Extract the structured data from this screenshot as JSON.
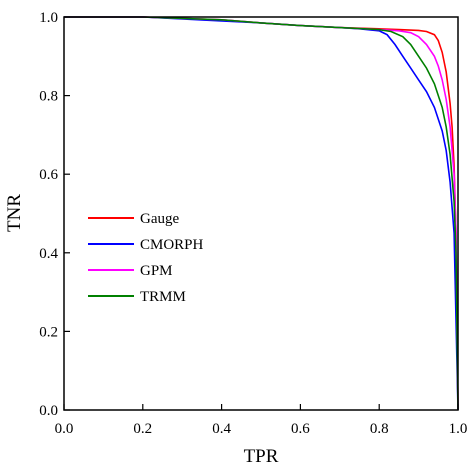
{
  "chart_data": {
    "type": "line",
    "title": "",
    "xlabel": "TPR",
    "ylabel": "TNR",
    "xlim": [
      0.0,
      1.0
    ],
    "ylim": [
      0.0,
      1.0
    ],
    "xticks": [
      "0.0",
      "0.2",
      "0.4",
      "0.6",
      "0.8",
      "1.0"
    ],
    "yticks": [
      "0.0",
      "0.2",
      "0.4",
      "0.6",
      "0.8",
      "1.0"
    ],
    "grid": false,
    "legend_position": "center-left",
    "series": [
      {
        "name": "Gauge",
        "color": "#ff0000",
        "x": [
          0.0,
          0.2,
          0.4,
          0.5,
          0.6,
          0.7,
          0.8,
          0.85,
          0.9,
          0.92,
          0.94,
          0.95,
          0.96,
          0.97,
          0.98,
          0.985,
          0.99,
          0.995,
          1.0
        ],
        "y": [
          1.0,
          1.0,
          0.993,
          0.985,
          0.978,
          0.973,
          0.97,
          0.968,
          0.966,
          0.963,
          0.955,
          0.94,
          0.91,
          0.86,
          0.78,
          0.72,
          0.62,
          0.45,
          0.0
        ]
      },
      {
        "name": "CMORPH",
        "color": "#0000ff",
        "x": [
          0.0,
          0.2,
          0.4,
          0.5,
          0.6,
          0.7,
          0.75,
          0.8,
          0.82,
          0.84,
          0.86,
          0.88,
          0.9,
          0.92,
          0.94,
          0.96,
          0.97,
          0.98,
          0.99,
          1.0
        ],
        "y": [
          1.0,
          1.0,
          0.99,
          0.985,
          0.978,
          0.973,
          0.97,
          0.965,
          0.955,
          0.93,
          0.9,
          0.87,
          0.84,
          0.81,
          0.77,
          0.71,
          0.66,
          0.58,
          0.45,
          0.0
        ]
      },
      {
        "name": "GPM",
        "color": "#ff00ff",
        "x": [
          0.0,
          0.2,
          0.4,
          0.5,
          0.6,
          0.7,
          0.8,
          0.85,
          0.88,
          0.9,
          0.92,
          0.94,
          0.95,
          0.96,
          0.97,
          0.98,
          0.99,
          0.995,
          1.0
        ],
        "y": [
          1.0,
          1.0,
          0.993,
          0.985,
          0.978,
          0.973,
          0.968,
          0.965,
          0.96,
          0.95,
          0.93,
          0.9,
          0.875,
          0.84,
          0.79,
          0.72,
          0.6,
          0.45,
          0.0
        ]
      },
      {
        "name": "TRMM",
        "color": "#008000",
        "x": [
          0.0,
          0.2,
          0.4,
          0.5,
          0.6,
          0.7,
          0.8,
          0.83,
          0.86,
          0.88,
          0.9,
          0.92,
          0.94,
          0.96,
          0.97,
          0.98,
          0.99,
          0.995,
          1.0
        ],
        "y": [
          1.0,
          1.0,
          0.993,
          0.985,
          0.978,
          0.973,
          0.968,
          0.963,
          0.95,
          0.93,
          0.9,
          0.87,
          0.83,
          0.77,
          0.72,
          0.65,
          0.53,
          0.4,
          0.0
        ]
      }
    ]
  }
}
